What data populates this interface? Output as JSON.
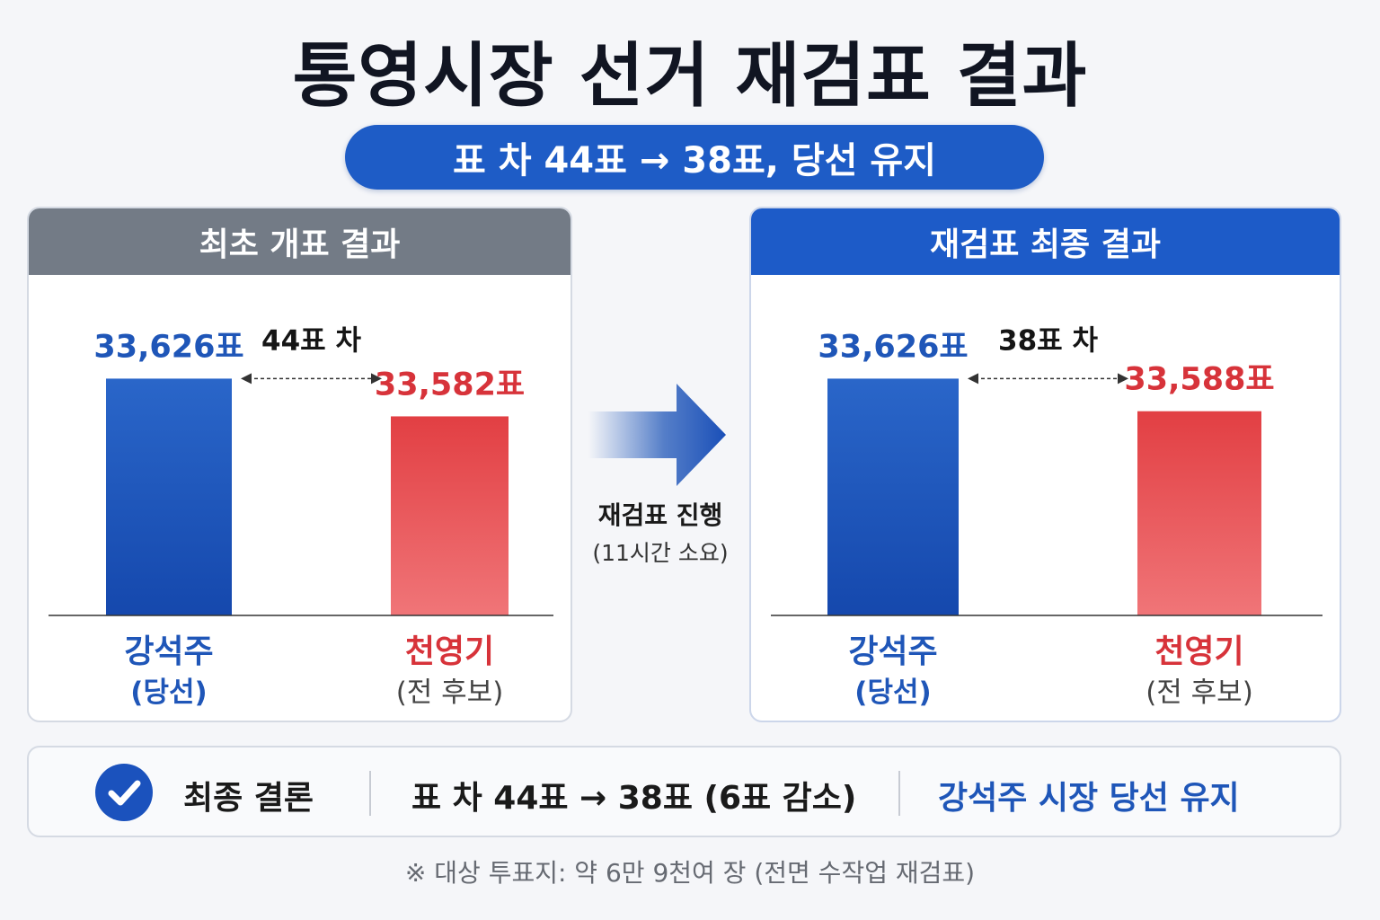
{
  "title": "통영시장 선거 재검표 결과",
  "subtitle": "표 차 44표 → 38표, 당선 유지",
  "middle": {
    "label": "재검표 진행",
    "sub": "(11시간 소요)"
  },
  "colors": {
    "blue": "#1f56b8",
    "red": "#d7333a",
    "header_gray": "#737b86",
    "header_blue": "#1d5bc8"
  },
  "summary": {
    "label": "최종 결론",
    "diff": "표 차 44표 → 38표 (6표 감소)",
    "result": "강석주 시장 당선 유지",
    "icon": "check-circle-icon"
  },
  "footnote": "※ 대상 투표지: 약 6만 9천여 장 (전면 수작업 재검표)",
  "chart_data": [
    {
      "type": "bar",
      "title": "최초 개표 결과",
      "categories": [
        "강석주",
        "천영기"
      ],
      "category_sublabels": [
        "(당선)",
        "(전 후보)"
      ],
      "values": [
        33626,
        33582
      ],
      "value_labels": [
        "33,626표",
        "33,582표"
      ],
      "series_colors": [
        "#1f56b8",
        "#e03c42"
      ],
      "difference_label": "44표 차"
    },
    {
      "type": "bar",
      "title": "재검표 최종 결과",
      "categories": [
        "강석주",
        "천영기"
      ],
      "category_sublabels": [
        "(당선)",
        "(전 후보)"
      ],
      "values": [
        33626,
        33588
      ],
      "value_labels": [
        "33,626표",
        "33,588표"
      ],
      "series_colors": [
        "#1f56b8",
        "#e03c42"
      ],
      "difference_label": "38표 차"
    }
  ]
}
